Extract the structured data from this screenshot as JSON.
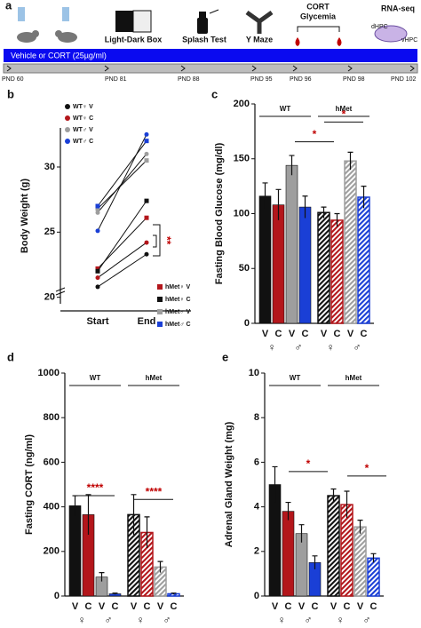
{
  "timeline": {
    "panel": "a",
    "tasks": [
      "Light-Dark Box",
      "Splash Test",
      "Y Maze",
      "CORT",
      "Glycemia",
      "RNA-seq"
    ],
    "regions": [
      "dHPC",
      "vHPC"
    ],
    "treatment": "Vehicle or CORT (25µg/ml)",
    "days": [
      "PND 60",
      "PND 81",
      "PND 88",
      "PND 95",
      "PND 96",
      "PND 98",
      "PND 102"
    ]
  },
  "chart_data": [
    {
      "type": "line",
      "panel": "b",
      "ylabel": "Body Weight (g)",
      "categories": [
        "Start",
        "End"
      ],
      "ylim": [
        19.5,
        33
      ],
      "yticks": [
        20,
        25,
        30
      ],
      "series": [
        {
          "name": "WT♀ V",
          "color": "#111111",
          "marker": "circle",
          "values": [
            20.8,
            23.3
          ]
        },
        {
          "name": "WT♀ C",
          "color": "#b3161b",
          "marker": "circle",
          "values": [
            21.5,
            24.2
          ]
        },
        {
          "name": "WT♂ V",
          "color": "#9e9e9e",
          "marker": "circle",
          "values": [
            26.5,
            31.0
          ]
        },
        {
          "name": "WT♂ C",
          "color": "#1a3fd6",
          "marker": "circle",
          "values": [
            25.1,
            32.5
          ]
        },
        {
          "name": "hMet♀ V",
          "color": "#b3161b",
          "marker": "square",
          "values": [
            22.2,
            26.1
          ]
        },
        {
          "name": "hMet♀ C",
          "color": "#111111",
          "marker": "square",
          "values": [
            22.0,
            27.4
          ]
        },
        {
          "name": "hMet♂ V",
          "color": "#9e9e9e",
          "marker": "square",
          "values": [
            26.8,
            30.5
          ]
        },
        {
          "name": "hMet♂ C",
          "color": "#1a3fd6",
          "marker": "square",
          "values": [
            27.0,
            32.0
          ]
        }
      ],
      "annotations": [
        "**"
      ]
    },
    {
      "type": "bar",
      "panel": "c",
      "ylabel": "Fasting Blood Glucose (mg/dl)",
      "groups": [
        "WT",
        "hMet"
      ],
      "categories": [
        "V",
        "C",
        "V",
        "C",
        "V",
        "C",
        "V",
        "C"
      ],
      "sex_labels": [
        "♀",
        "♂",
        "♀",
        "♂"
      ],
      "values": [
        116,
        108,
        144,
        106,
        101,
        94,
        148,
        115
      ],
      "errors": [
        12,
        14,
        9,
        10,
        5,
        6,
        8,
        10
      ],
      "colors": [
        "#111111",
        "#b3161b",
        "#9e9e9e",
        "#1a3fd6",
        "#111111",
        "#b3161b",
        "#9e9e9e",
        "#1a3fd6"
      ],
      "hatched": [
        false,
        false,
        false,
        false,
        true,
        true,
        true,
        true
      ],
      "ylim": [
        0,
        200
      ],
      "yticks": [
        0,
        50,
        100,
        150,
        200
      ],
      "annotations": [
        "*",
        "*"
      ]
    },
    {
      "type": "bar",
      "panel": "d",
      "ylabel": "Fasting CORT (ng/ml)",
      "groups": [
        "WT",
        "hMet"
      ],
      "categories": [
        "V",
        "C",
        "V",
        "C",
        "V",
        "C",
        "V",
        "C"
      ],
      "sex_labels": [
        "♀",
        "♂",
        "♀",
        "♂"
      ],
      "values": [
        405,
        365,
        85,
        10,
        365,
        285,
        130,
        10
      ],
      "errors": [
        45,
        90,
        20,
        3,
        90,
        70,
        25,
        3
      ],
      "colors": [
        "#111111",
        "#b3161b",
        "#9e9e9e",
        "#1a3fd6",
        "#111111",
        "#b3161b",
        "#9e9e9e",
        "#1a3fd6"
      ],
      "hatched": [
        false,
        false,
        false,
        false,
        true,
        true,
        true,
        true
      ],
      "ylim": [
        0,
        1000
      ],
      "yticks": [
        0,
        200,
        400,
        600,
        800,
        1000
      ],
      "annotations": [
        "****",
        "****"
      ]
    },
    {
      "type": "bar",
      "panel": "e",
      "ylabel": "Adrenal Gland Weight (mg)",
      "groups": [
        "WT",
        "hMet"
      ],
      "categories": [
        "V",
        "C",
        "V",
        "C",
        "V",
        "C",
        "V",
        "C"
      ],
      "sex_labels": [
        "♀",
        "♂",
        "♀",
        "♂"
      ],
      "values": [
        5.0,
        3.8,
        2.8,
        1.5,
        4.5,
        4.1,
        3.1,
        1.7
      ],
      "errors": [
        0.8,
        0.4,
        0.4,
        0.3,
        0.3,
        0.6,
        0.3,
        0.2
      ],
      "colors": [
        "#111111",
        "#b3161b",
        "#9e9e9e",
        "#1a3fd6",
        "#111111",
        "#b3161b",
        "#9e9e9e",
        "#1a3fd6"
      ],
      "hatched": [
        false,
        false,
        false,
        false,
        true,
        true,
        true,
        true
      ],
      "ylim": [
        0,
        10
      ],
      "yticks": [
        0,
        2,
        4,
        6,
        8,
        10
      ],
      "annotations": [
        "*",
        "*"
      ]
    }
  ]
}
